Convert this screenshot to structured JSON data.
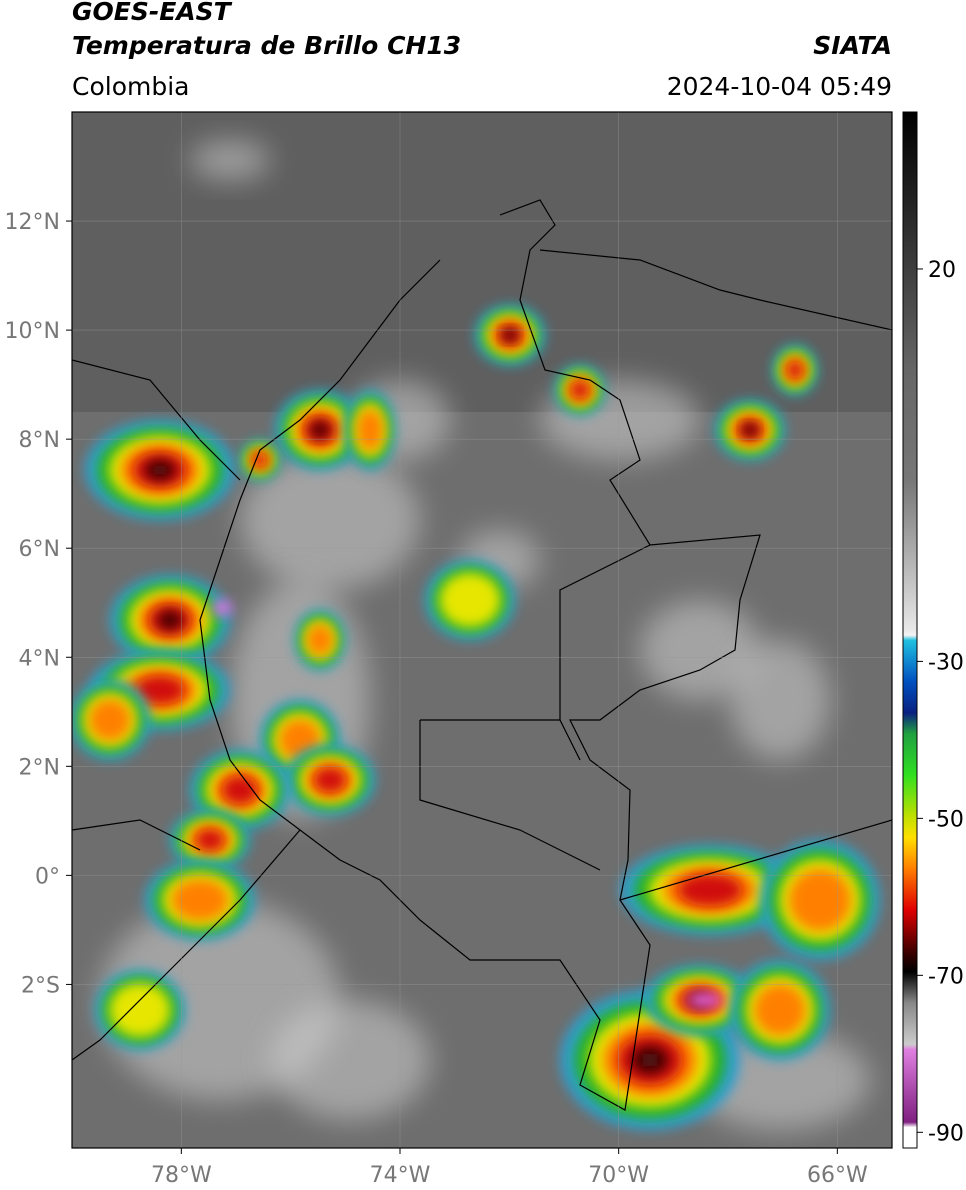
{
  "header": {
    "title_line1": "GOES-EAST",
    "title_line2": "Temperatura de Brillo CH13",
    "org": "SIATA",
    "region": "Colombia",
    "timestamp": "2024-10-04 05:49"
  },
  "map": {
    "lonlim": [
      -80,
      -65
    ],
    "latlim": [
      -5,
      14
    ],
    "lat_ticks": [
      {
        "value": 12,
        "label": "12°N"
      },
      {
        "value": 10,
        "label": "10°N"
      },
      {
        "value": 8,
        "label": "8°N"
      },
      {
        "value": 6,
        "label": "6°N"
      },
      {
        "value": 4,
        "label": "4°N"
      },
      {
        "value": 2,
        "label": "2°N"
      },
      {
        "value": 0,
        "label": "0°"
      },
      {
        "value": -2,
        "label": "2°S"
      }
    ],
    "lon_ticks": [
      {
        "value": -78,
        "label": "78°W"
      },
      {
        "value": -74,
        "label": "74°W"
      },
      {
        "value": -70,
        "label": "70°W"
      },
      {
        "value": -66,
        "label": "66°W"
      }
    ]
  },
  "colorbar": {
    "lim": [
      -92,
      40
    ],
    "ticks": [
      20,
      -30,
      -50,
      -70,
      -90
    ]
  }
}
